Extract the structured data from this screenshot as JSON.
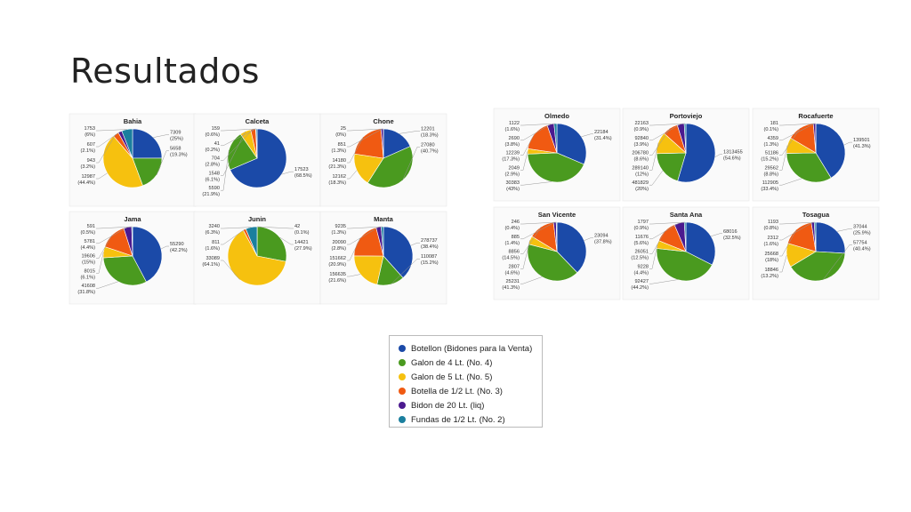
{
  "slide": {
    "title": "Resultados"
  },
  "colors": {
    "Botellon": "#1b4aa8",
    "Galon4": "#4a9a1f",
    "Galon5": "#f6c10f",
    "Botella": "#f05a12",
    "Bidon": "#4b1a8f",
    "Fundas": "#1b7f9e"
  },
  "legend": [
    {
      "key": "Botellon",
      "label": "Botellon (Bidones para la Venta)"
    },
    {
      "key": "Galon4",
      "label": "Galon de 4 Lt. (No. 4)"
    },
    {
      "key": "Galon5",
      "label": "Galon de 5 Lt. (No. 5)"
    },
    {
      "key": "Botella",
      "label": "Botella de 1/2 Lt. (No. 3)"
    },
    {
      "key": "Bidon",
      "label": "Bidon de 20 Lt. (liq)"
    },
    {
      "key": "Fundas",
      "label": "Fundas de 1/2 Lt. (No. 2)"
    }
  ],
  "chart_data": [
    {
      "type": "pie",
      "title": "Bahia",
      "slices": [
        {
          "key": "Botellon",
          "value": 7309,
          "pct": "(25%)"
        },
        {
          "key": "Galon4",
          "value": 5658,
          "pct": "(19.3%)"
        },
        {
          "key": "Galon5",
          "value": 12987,
          "pct": "(44.4%)"
        },
        {
          "key": "Botella",
          "value": 943,
          "pct": "(3.2%)"
        },
        {
          "key": "Bidon",
          "value": 607,
          "pct": "(2.1%)"
        },
        {
          "key": "Fundas",
          "value": 1753,
          "pct": "(6%)"
        }
      ]
    },
    {
      "type": "pie",
      "title": "Calceta",
      "slices": [
        {
          "key": "Botellon",
          "value": 17523,
          "pct": "(68.5%)"
        },
        {
          "key": "Galon4",
          "value": 5590,
          "pct": "(21.9%)"
        },
        {
          "key": "Galon5",
          "value": 1548,
          "pct": "(6.1%)"
        },
        {
          "key": "Botella",
          "value": 704,
          "pct": "(2.8%)"
        },
        {
          "key": "Bidon",
          "value": 41,
          "pct": "(0.2%)"
        },
        {
          "key": "Fundas",
          "value": 159,
          "pct": "(0.6%)"
        }
      ]
    },
    {
      "type": "pie",
      "title": "Chone",
      "slices": [
        {
          "key": "Botellon",
          "value": 12201,
          "pct": "(18.3%)"
        },
        {
          "key": "Galon4",
          "value": 27080,
          "pct": "(40.7%)"
        },
        {
          "key": "Galon5",
          "value": 12162,
          "pct": "(18.3%)"
        },
        {
          "key": "Botella",
          "value": 14180,
          "pct": "(21.3%)"
        },
        {
          "key": "Bidon",
          "value": 851,
          "pct": "(1.3%)"
        },
        {
          "key": "Fundas",
          "value": 25,
          "pct": "(0%)"
        }
      ]
    },
    {
      "type": "pie",
      "title": "Jama",
      "slices": [
        {
          "key": "Botellon",
          "value": 55290,
          "pct": "(42.2%)"
        },
        {
          "key": "Galon4",
          "value": 41608,
          "pct": "(31.8%)"
        },
        {
          "key": "Galon5",
          "value": 8015,
          "pct": "(6.1%)"
        },
        {
          "key": "Botella",
          "value": 19606,
          "pct": "(15%)"
        },
        {
          "key": "Bidon",
          "value": 5781,
          "pct": "(4.4%)"
        },
        {
          "key": "Fundas",
          "value": 591,
          "pct": "(0.5%)"
        }
      ]
    },
    {
      "type": "pie",
      "title": "Junin",
      "slices": [
        {
          "key": "Botellon",
          "value": 42,
          "pct": "(0.1%)"
        },
        {
          "key": "Galon4",
          "value": 14421,
          "pct": "(27.9%)"
        },
        {
          "key": "Galon5",
          "value": 33089,
          "pct": "(64.1%)"
        },
        {
          "key": "Botella",
          "value": 811,
          "pct": "(1.6%)"
        },
        {
          "key": "Fundas",
          "value": 3240,
          "pct": "(6.3%)"
        }
      ]
    },
    {
      "type": "pie",
      "title": "Manta",
      "slices": [
        {
          "key": "Botellon",
          "value": 278737,
          "pct": "(38.4%)"
        },
        {
          "key": "Galon4",
          "value": 110087,
          "pct": "(15.2%)"
        },
        {
          "key": "Galon5",
          "value": 156635,
          "pct": "(21.6%)"
        },
        {
          "key": "Botella",
          "value": 151662,
          "pct": "(20.9%)"
        },
        {
          "key": "Bidon",
          "value": 20090,
          "pct": "(2.8%)"
        },
        {
          "key": "Fundas",
          "value": 9235,
          "pct": "(1.3%)"
        }
      ]
    },
    {
      "type": "pie",
      "title": "Olmedo",
      "slices": [
        {
          "key": "Botellon",
          "value": 22184,
          "pct": "(31.4%)"
        },
        {
          "key": "Galon4",
          "value": 30383,
          "pct": "(43%)"
        },
        {
          "key": "Galon5",
          "value": 2049,
          "pct": "(2.9%)"
        },
        {
          "key": "Botella",
          "value": 12239,
          "pct": "(17.3%)"
        },
        {
          "key": "Bidon",
          "value": 2690,
          "pct": "(3.8%)"
        },
        {
          "key": "Fundas",
          "value": 1122,
          "pct": "(1.6%)"
        }
      ]
    },
    {
      "type": "pie",
      "title": "Portoviejo",
      "slices": [
        {
          "key": "Botellon",
          "value": 1313455,
          "pct": "(54.6%)"
        },
        {
          "key": "Galon4",
          "value": 481829,
          "pct": "(20%)"
        },
        {
          "key": "Galon5",
          "value": 289140,
          "pct": "(12%)"
        },
        {
          "key": "Botella",
          "value": 206780,
          "pct": "(8.6%)"
        },
        {
          "key": "Bidon",
          "value": 92840,
          "pct": "(3.9%)"
        },
        {
          "key": "Fundas",
          "value": 22163,
          "pct": "(0.9%)"
        }
      ]
    },
    {
      "type": "pie",
      "title": "Rocafuerte",
      "slices": [
        {
          "key": "Botellon",
          "value": 139501,
          "pct": "(41.3%)"
        },
        {
          "key": "Galon4",
          "value": 112905,
          "pct": "(33.4%)"
        },
        {
          "key": "Galon5",
          "value": 29562,
          "pct": "(8.8%)"
        },
        {
          "key": "Botella",
          "value": 51186,
          "pct": "(15.2%)"
        },
        {
          "key": "Bidon",
          "value": 4359,
          "pct": "(1.3%)"
        },
        {
          "key": "Fundas",
          "value": 181,
          "pct": "(0.1%)"
        }
      ]
    },
    {
      "type": "pie",
      "title": "San Vicente",
      "slices": [
        {
          "key": "Botellon",
          "value": 23094,
          "pct": "(37.8%)"
        },
        {
          "key": "Galon4",
          "value": 25231,
          "pct": "(41.3%)"
        },
        {
          "key": "Galon5",
          "value": 2807,
          "pct": "(4.6%)"
        },
        {
          "key": "Botella",
          "value": 8856,
          "pct": "(14.5%)"
        },
        {
          "key": "Bidon",
          "value": 885,
          "pct": "(1.4%)"
        },
        {
          "key": "Fundas",
          "value": 246,
          "pct": "(0.4%)"
        }
      ]
    },
    {
      "type": "pie",
      "title": "Santa Ana",
      "slices": [
        {
          "key": "Botellon",
          "value": 68016,
          "pct": "(32.5%)"
        },
        {
          "key": "Galon4",
          "value": 92427,
          "pct": "(44.2%)"
        },
        {
          "key": "Galon5",
          "value": 9228,
          "pct": "(4.4%)"
        },
        {
          "key": "Botella",
          "value": 26051,
          "pct": "(12.5%)"
        },
        {
          "key": "Bidon",
          "value": 11676,
          "pct": "(5.6%)"
        },
        {
          "key": "Fundas",
          "value": 1797,
          "pct": "(0.9%)"
        }
      ]
    },
    {
      "type": "pie",
      "title": "Tosagua",
      "slices": [
        {
          "key": "Botellon",
          "value": 37044,
          "pct": "(25.9%)"
        },
        {
          "key": "Galon4",
          "value": 57754,
          "pct": "(40.4%)"
        },
        {
          "key": "Galon5",
          "value": 18846,
          "pct": "(13.2%)"
        },
        {
          "key": "Botella",
          "value": 25668,
          "pct": "(18%)"
        },
        {
          "key": "Bidon",
          "value": 2312,
          "pct": "(1.6%)"
        },
        {
          "key": "Fundas",
          "value": 1193,
          "pct": "(0.8%)"
        }
      ]
    }
  ]
}
